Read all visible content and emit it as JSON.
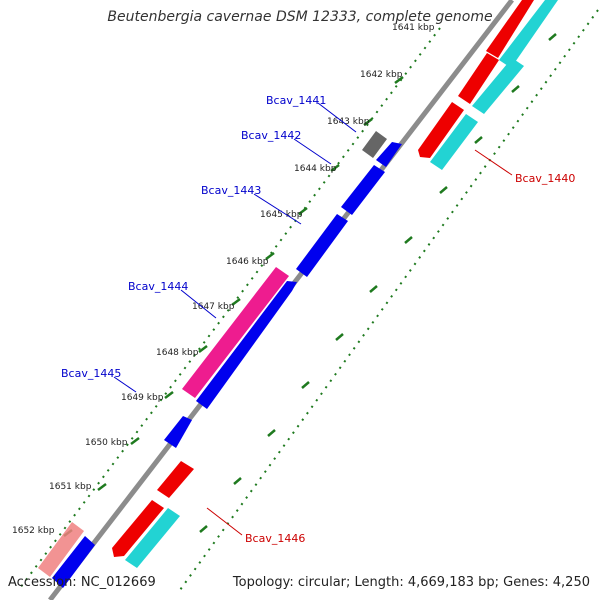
{
  "title": "Beutenbergia cavernae DSM 12333, complete genome",
  "footer": {
    "accession": "Accession: NC_012669",
    "summary": "Topology: circular; Length: 4,669,183 bp; Genes: 4,250"
  },
  "colors": {
    "backbone": "#8c8c8c",
    "tick": "#1f7a1f",
    "blue_gene": "#0000ee",
    "red_gene": "#ee0000",
    "cyan_gene": "#22d3d3",
    "magenta_gene": "#ee1c8f",
    "gray_gene": "#666666",
    "pink_gene": "#f08080",
    "blue_label": "#0000cc",
    "red_label": "#cc0000"
  },
  "tick_labels": [
    "1641 kbp",
    "1642 kbp",
    "1643 kbp",
    "1644 kbp",
    "1645 kbp",
    "1646 kbp",
    "1647 kbp",
    "1648 kbp",
    "1649 kbp",
    "1650 kbp",
    "1651 kbp",
    "1652 kbp"
  ],
  "gene_labels": [
    {
      "id": "Bcav_1441",
      "color": "blue"
    },
    {
      "id": "Bcav_1442",
      "color": "blue"
    },
    {
      "id": "Bcav_1443",
      "color": "blue"
    },
    {
      "id": "Bcav_1444",
      "color": "blue"
    },
    {
      "id": "Bcav_1445",
      "color": "blue"
    },
    {
      "id": "Bcav_1440",
      "color": "red"
    },
    {
      "id": "Bcav_1446",
      "color": "red"
    }
  ]
}
